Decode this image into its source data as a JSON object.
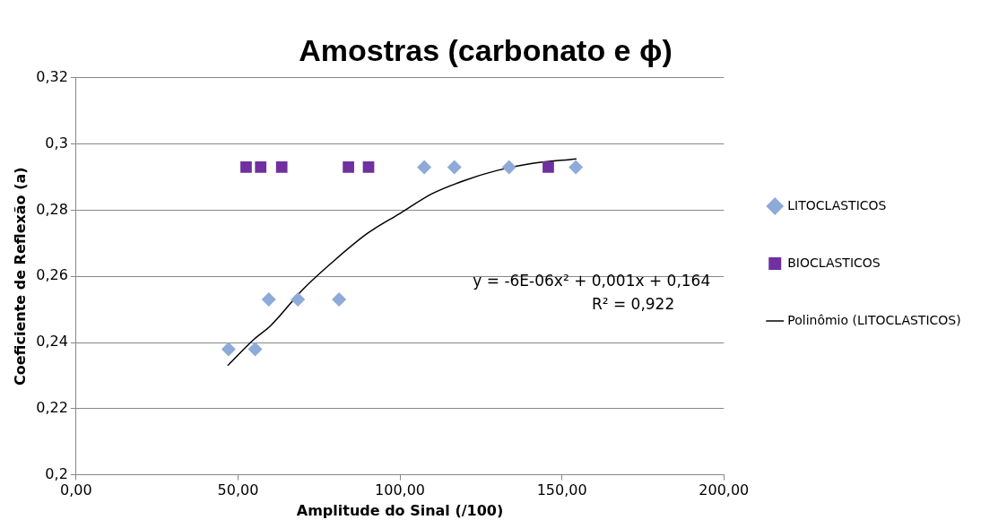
{
  "chart_data": {
    "type": "scatter",
    "title": "Amostras (carbonato e ϕ)",
    "xlabel": "Amplitude do Sinal (/100)",
    "ylabel": "Coeficiente de Reflexão (a)",
    "xlim": [
      0,
      200
    ],
    "xticks": [
      {
        "value": 0,
        "label": "0,00"
      },
      {
        "value": 50,
        "label": "50,00"
      },
      {
        "value": 100,
        "label": "100,00"
      },
      {
        "value": 150,
        "label": "150,00"
      },
      {
        "value": 200,
        "label": "200,00"
      }
    ],
    "ylim": [
      0.2,
      0.32
    ],
    "yticks": [
      {
        "value": 0.2,
        "label": "0,2"
      },
      {
        "value": 0.22,
        "label": "0,22"
      },
      {
        "value": 0.24,
        "label": "0,24"
      },
      {
        "value": 0.26,
        "label": "0,26"
      },
      {
        "value": 0.28,
        "label": "0,28"
      },
      {
        "value": 0.3,
        "label": "0,3"
      },
      {
        "value": 0.32,
        "label": "0,32"
      }
    ],
    "grid": "y",
    "legend": "right",
    "annotations": [
      "y = -6E-06x² + 0,001x + 0,164",
      "R² = 0,922"
    ],
    "series": [
      {
        "name": "LITOCLASTICOS",
        "color": "#8eaad8",
        "marker": "diamond",
        "x": [
          47.1,
          55.3,
          59.5,
          68.5,
          81.2,
          107.5,
          116.8,
          133.7,
          154.3
        ],
        "values": [
          0.238,
          0.238,
          0.253,
          0.253,
          0.253,
          0.293,
          0.293,
          0.293,
          0.293
        ]
      },
      {
        "name": "BIOCLASTICOS",
        "color": "#7030a0",
        "marker": "square",
        "x": [
          52.5,
          57.0,
          63.5,
          84.1,
          90.3,
          145.8
        ],
        "values": [
          0.293,
          0.293,
          0.293,
          0.293,
          0.293,
          0.293
        ]
      },
      {
        "name": "Polinômio (LITOCLASTICOS)",
        "type": "line",
        "color": "#000000",
        "marker": "none",
        "line_style": "solid",
        "x": [
          46.8,
          55,
          60,
          70,
          80,
          90,
          100,
          110,
          120,
          130,
          140,
          154.5
        ],
        "values": [
          0.233,
          0.241,
          0.245,
          0.256,
          0.265,
          0.273,
          0.279,
          0.285,
          0.289,
          0.292,
          0.294,
          0.2955
        ]
      }
    ]
  }
}
